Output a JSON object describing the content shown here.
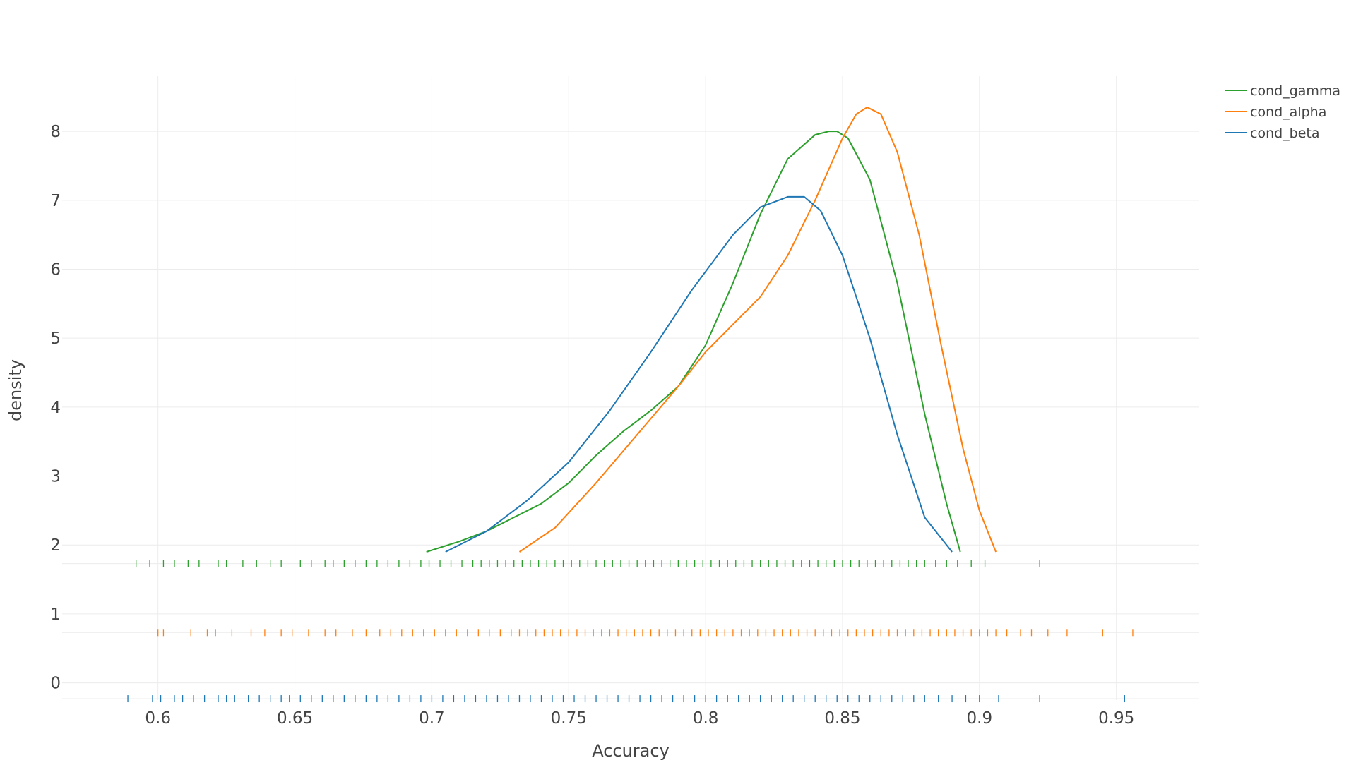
{
  "chart_data": {
    "type": "line",
    "title": "",
    "xlabel": "Accuracy",
    "ylabel": "density",
    "xlim": [
      0.565,
      0.98
    ],
    "ylim": [
      -0.25,
      8.8
    ],
    "xticks": [
      0.6,
      0.65,
      0.7,
      0.75,
      0.8,
      0.85,
      0.9,
      0.95
    ],
    "xtick_labels": [
      "0.6",
      "0.65",
      "0.7",
      "0.75",
      "0.8",
      "0.85",
      "0.9",
      "0.95"
    ],
    "yticks": [
      0,
      1,
      2,
      3,
      4,
      5,
      6,
      7,
      8
    ],
    "ytick_labels": [
      "0",
      "1",
      "2",
      "3",
      "4",
      "5",
      "6",
      "7",
      "8"
    ],
    "grid": true,
    "legend_position": "top-right",
    "colors": {
      "cond_gamma": "#2ca02c",
      "cond_alpha": "#ff7f0e",
      "cond_beta": "#1f77b4"
    },
    "series": [
      {
        "name": "cond_gamma",
        "color": "#2ca02c",
        "rug_y": 1.73,
        "x": [
          0.698,
          0.71,
          0.72,
          0.73,
          0.74,
          0.75,
          0.76,
          0.77,
          0.78,
          0.79,
          0.8,
          0.81,
          0.82,
          0.83,
          0.84,
          0.845,
          0.848,
          0.852,
          0.86,
          0.87,
          0.88,
          0.888,
          0.893
        ],
        "y": [
          1.9,
          2.05,
          2.2,
          2.4,
          2.6,
          2.9,
          3.3,
          3.65,
          3.95,
          4.3,
          4.9,
          5.8,
          6.8,
          7.6,
          7.95,
          8.0,
          8.0,
          7.9,
          7.3,
          5.8,
          3.9,
          2.6,
          1.9
        ],
        "rug": [
          0.592,
          0.597,
          0.602,
          0.606,
          0.611,
          0.615,
          0.622,
          0.625,
          0.631,
          0.636,
          0.641,
          0.645,
          0.652,
          0.656,
          0.661,
          0.664,
          0.668,
          0.672,
          0.676,
          0.68,
          0.684,
          0.688,
          0.692,
          0.696,
          0.699,
          0.703,
          0.707,
          0.711,
          0.715,
          0.718,
          0.721,
          0.724,
          0.727,
          0.73,
          0.733,
          0.736,
          0.739,
          0.742,
          0.745,
          0.748,
          0.751,
          0.754,
          0.757,
          0.76,
          0.763,
          0.766,
          0.769,
          0.772,
          0.775,
          0.778,
          0.781,
          0.784,
          0.787,
          0.79,
          0.793,
          0.796,
          0.799,
          0.802,
          0.805,
          0.808,
          0.811,
          0.814,
          0.817,
          0.82,
          0.823,
          0.826,
          0.829,
          0.832,
          0.835,
          0.838,
          0.841,
          0.844,
          0.847,
          0.85,
          0.853,
          0.856,
          0.859,
          0.862,
          0.865,
          0.868,
          0.871,
          0.874,
          0.877,
          0.88,
          0.884,
          0.888,
          0.892,
          0.897,
          0.902,
          0.922
        ]
      },
      {
        "name": "cond_alpha",
        "color": "#ff7f0e",
        "rug_y": 0.73,
        "x": [
          0.732,
          0.745,
          0.76,
          0.775,
          0.79,
          0.8,
          0.81,
          0.82,
          0.83,
          0.84,
          0.85,
          0.855,
          0.859,
          0.864,
          0.87,
          0.878,
          0.886,
          0.894,
          0.9,
          0.906
        ],
        "y": [
          1.9,
          2.25,
          2.9,
          3.6,
          4.3,
          4.8,
          5.2,
          5.6,
          6.2,
          7.0,
          7.9,
          8.25,
          8.35,
          8.25,
          7.7,
          6.5,
          4.9,
          3.4,
          2.5,
          1.9
        ],
        "rug": [
          0.6,
          0.602,
          0.612,
          0.618,
          0.621,
          0.627,
          0.634,
          0.639,
          0.645,
          0.649,
          0.655,
          0.661,
          0.665,
          0.671,
          0.676,
          0.681,
          0.685,
          0.689,
          0.693,
          0.697,
          0.701,
          0.705,
          0.709,
          0.713,
          0.717,
          0.721,
          0.725,
          0.729,
          0.732,
          0.735,
          0.738,
          0.741,
          0.744,
          0.747,
          0.75,
          0.753,
          0.756,
          0.759,
          0.762,
          0.765,
          0.768,
          0.771,
          0.774,
          0.777,
          0.78,
          0.783,
          0.786,
          0.789,
          0.792,
          0.795,
          0.798,
          0.801,
          0.804,
          0.807,
          0.81,
          0.813,
          0.816,
          0.819,
          0.822,
          0.825,
          0.828,
          0.831,
          0.834,
          0.837,
          0.84,
          0.843,
          0.846,
          0.849,
          0.852,
          0.855,
          0.858,
          0.861,
          0.864,
          0.867,
          0.87,
          0.873,
          0.876,
          0.879,
          0.882,
          0.885,
          0.888,
          0.891,
          0.894,
          0.897,
          0.9,
          0.903,
          0.906,
          0.91,
          0.915,
          0.919,
          0.925,
          0.932,
          0.945,
          0.956
        ]
      },
      {
        "name": "cond_beta",
        "color": "#1f77b4",
        "rug_y": -0.23,
        "x": [
          0.705,
          0.72,
          0.735,
          0.75,
          0.765,
          0.78,
          0.795,
          0.81,
          0.82,
          0.83,
          0.836,
          0.842,
          0.85,
          0.86,
          0.87,
          0.88,
          0.89
        ],
        "y": [
          1.9,
          2.2,
          2.65,
          3.2,
          3.95,
          4.8,
          5.7,
          6.5,
          6.9,
          7.05,
          7.05,
          6.85,
          6.2,
          5.0,
          3.6,
          2.4,
          1.9
        ],
        "rug": [
          0.589,
          0.598,
          0.601,
          0.606,
          0.609,
          0.613,
          0.617,
          0.622,
          0.625,
          0.628,
          0.633,
          0.637,
          0.641,
          0.645,
          0.648,
          0.652,
          0.656,
          0.66,
          0.664,
          0.668,
          0.672,
          0.676,
          0.68,
          0.684,
          0.688,
          0.692,
          0.696,
          0.7,
          0.704,
          0.708,
          0.712,
          0.716,
          0.72,
          0.724,
          0.728,
          0.732,
          0.736,
          0.74,
          0.744,
          0.748,
          0.752,
          0.756,
          0.76,
          0.764,
          0.768,
          0.772,
          0.776,
          0.78,
          0.784,
          0.788,
          0.792,
          0.796,
          0.8,
          0.804,
          0.808,
          0.812,
          0.816,
          0.82,
          0.824,
          0.828,
          0.832,
          0.836,
          0.84,
          0.844,
          0.848,
          0.852,
          0.856,
          0.86,
          0.864,
          0.868,
          0.872,
          0.876,
          0.88,
          0.885,
          0.89,
          0.895,
          0.9,
          0.907,
          0.922,
          0.953
        ]
      }
    ]
  }
}
